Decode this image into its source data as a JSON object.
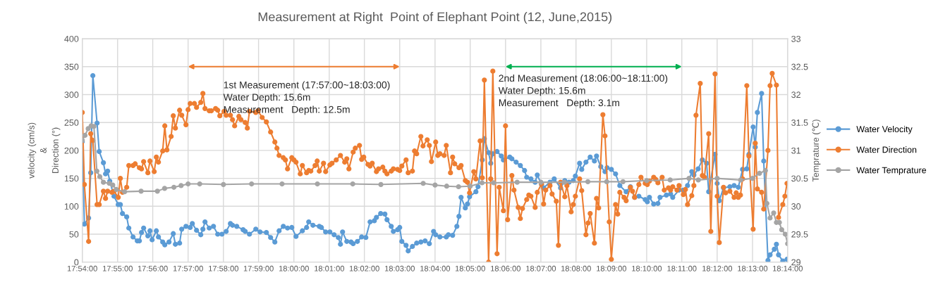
{
  "chart_data": {
    "type": "line",
    "title": "Measurement at Right  Point of Elephant Point (12, June,2015)",
    "ylabel": "velocity (cm/s)\n&\nDirection (°)",
    "y2label": "Temprature (℃)",
    "xlim": [
      17.9,
      18.2333
    ],
    "xticks": [
      {
        "value": 17.9,
        "label": "17:54:00"
      },
      {
        "value": 17.9167,
        "label": "17:55:00"
      },
      {
        "value": 17.9333,
        "label": "17:56:00"
      },
      {
        "value": 17.95,
        "label": "17:57:00"
      },
      {
        "value": 17.9667,
        "label": "17:58:00"
      },
      {
        "value": 17.9833,
        "label": "17:59:00"
      },
      {
        "value": 18.0,
        "label": "18:00:00"
      },
      {
        "value": 18.0167,
        "label": "18:01:00"
      },
      {
        "value": 18.0333,
        "label": "18:02:00"
      },
      {
        "value": 18.05,
        "label": "18:03:00"
      },
      {
        "value": 18.0667,
        "label": "18:04:00"
      },
      {
        "value": 18.0833,
        "label": "18:05:00"
      },
      {
        "value": 18.1,
        "label": "18:06:00"
      },
      {
        "value": 18.1167,
        "label": "18:07:00"
      },
      {
        "value": 18.1333,
        "label": "18:08:00"
      },
      {
        "value": 18.15,
        "label": "18:09:00"
      },
      {
        "value": 18.1667,
        "label": "18:10:00"
      },
      {
        "value": 18.1833,
        "label": "18:11:00"
      },
      {
        "value": 18.2,
        "label": "18:12:00"
      },
      {
        "value": 18.2167,
        "label": "18:13:00"
      },
      {
        "value": 18.2333,
        "label": "18:14:00"
      }
    ],
    "ylim": [
      0,
      400
    ],
    "yticks": [
      0,
      50,
      100,
      150,
      200,
      250,
      300,
      350,
      400
    ],
    "y2lim": [
      29,
      33
    ],
    "y2ticks": [
      29,
      29.5,
      30,
      30.5,
      31,
      31.5,
      32,
      32.5,
      33
    ],
    "grid": true,
    "legend": "right",
    "marker": "circle",
    "line_style": "solid",
    "annotations": [
      "1st Measurement (17:57:00~18:03:00)\nWater Depth: 15.6m\nMeasurement   Depth: 12.5m",
      "2nd Measurement (18:06:00~18:11:00)\nWater Depth: 15.6m\nMeasurement   Depth: 3.1m"
    ],
    "series": [
      {
        "name": "Water Velocity",
        "color": "#5b9bd5",
        "x": [
          17.9,
          17.901,
          17.903,
          17.904,
          17.905,
          17.907,
          17.908,
          17.91,
          17.911,
          17.912,
          17.913,
          17.915,
          17.917,
          17.918,
          17.919,
          17.921,
          17.922,
          17.924,
          17.926,
          17.927,
          17.928,
          17.929,
          17.931,
          17.932,
          17.933,
          17.935,
          17.936,
          17.938,
          17.939,
          17.941,
          17.943,
          17.944,
          17.946,
          17.947,
          17.949,
          17.951,
          17.952,
          17.954,
          17.956,
          17.957,
          17.958,
          17.96,
          17.962,
          17.964,
          17.966,
          17.968,
          17.97,
          17.971,
          17.973,
          17.976,
          17.977,
          17.979,
          17.982,
          17.984,
          17.987,
          17.989,
          17.991,
          17.993,
          17.995,
          17.997,
          17.999,
          18.001,
          18.004,
          18.006,
          18.007,
          18.009,
          18.012,
          18.013,
          18.015,
          18.017,
          18.019,
          18.021,
          18.022,
          18.023,
          18.025,
          18.027,
          18.028,
          18.03,
          18.032,
          18.034,
          18.036,
          18.038,
          18.039,
          18.041,
          18.043,
          18.044,
          18.046,
          18.047,
          18.049,
          18.05,
          18.051,
          18.053,
          18.054,
          18.056,
          18.058,
          18.06,
          18.062,
          18.064,
          18.066,
          18.067,
          18.069,
          18.072,
          18.073,
          18.075,
          18.077,
          18.078,
          18.079,
          18.081,
          18.082,
          18.083,
          18.086,
          18.087,
          18.089,
          18.09,
          18.092,
          18.093,
          18.094,
          18.096,
          18.098,
          18.099,
          18.102,
          18.103,
          18.105,
          18.107,
          18.109,
          18.11,
          18.112,
          18.114,
          18.115,
          18.117,
          18.118,
          18.121,
          18.123,
          18.126,
          18.128,
          18.13,
          18.132,
          18.133,
          18.135,
          18.136,
          18.138,
          18.14,
          18.142,
          18.143,
          18.145,
          18.147,
          18.148,
          18.15,
          18.152,
          18.154,
          18.157,
          18.159,
          18.161,
          18.163,
          18.166,
          18.167,
          18.168,
          18.17,
          18.172,
          18.173,
          18.176,
          18.178,
          18.179,
          18.182,
          18.184,
          18.186,
          18.188,
          18.189,
          18.191,
          18.193,
          18.195,
          18.196,
          18.199,
          18.2,
          18.201,
          18.203,
          18.206,
          18.208,
          18.21,
          18.212,
          18.214,
          18.215,
          18.217,
          18.218,
          18.219,
          18.221,
          18.222,
          18.224,
          18.225,
          18.227,
          18.228,
          18.229,
          18.231,
          18.233
        ],
        "values": [
          216,
          68,
          79,
          160,
          334,
          249,
          198,
          178,
          158,
          163,
          145,
          118,
          103,
          103,
          87,
          81,
          61,
          45,
          38,
          38,
          53,
          61,
          47,
          56,
          40,
          56,
          45,
          36,
          31,
          36,
          51,
          32,
          34,
          59,
          64,
          62,
          69,
          57,
          49,
          59,
          72,
          61,
          64,
          50,
          50,
          55,
          69,
          66,
          64,
          58,
          55,
          50,
          59,
          54,
          53,
          44,
          36,
          56,
          64,
          61,
          62,
          46,
          56,
          62,
          72,
          66,
          64,
          62,
          54,
          54,
          49,
          44,
          32,
          54,
          37,
          36,
          33,
          37,
          45,
          44,
          72,
          74,
          80,
          87,
          86,
          76,
          64,
          55,
          58,
          62,
          37,
          30,
          20,
          28,
          34,
          36,
          38,
          33,
          55,
          49,
          45,
          45,
          49,
          48,
          64,
          82,
          116,
          97,
          104,
          117,
          126,
          135,
          183,
          221,
          196,
          177,
          194,
          198,
          190,
          183,
          188,
          185,
          179,
          173,
          164,
          152,
          149,
          143,
          156,
          139,
          133,
          143,
          149,
          133,
          146,
          143,
          146,
          154,
          177,
          166,
          179,
          188,
          181,
          190,
          171,
          162,
          169,
          166,
          158,
          137,
          126,
          135,
          116,
          118,
          112,
          108,
          116,
          104,
          105,
          116,
          120,
          122,
          116,
          129,
          129,
          137,
          162,
          156,
          167,
          183,
          177,
          126,
          193,
          141,
          110,
          133,
          135,
          137,
          134,
          166,
          167,
          193,
          242,
          206,
          268,
          302,
          181,
          3,
          13,
          23,
          32,
          13,
          2,
          5
        ]
      },
      {
        "name": "Water Direction",
        "color": "#ed7d31",
        "x": [
          17.9,
          17.901,
          17.903,
          17.904,
          17.905,
          17.907,
          17.908,
          17.91,
          17.911,
          17.912,
          17.914,
          17.915,
          17.917,
          17.918,
          17.919,
          17.921,
          17.922,
          17.924,
          17.925,
          17.927,
          17.928,
          17.929,
          17.931,
          17.932,
          17.934,
          17.935,
          17.936,
          17.938,
          17.939,
          17.94,
          17.942,
          17.943,
          17.944,
          17.946,
          17.947,
          17.949,
          17.95,
          17.951,
          17.953,
          17.954,
          17.956,
          17.957,
          17.958,
          17.96,
          17.961,
          17.963,
          17.964,
          17.965,
          17.967,
          17.968,
          17.97,
          17.971,
          17.972,
          17.974,
          17.975,
          17.977,
          17.978,
          17.979,
          17.982,
          17.983,
          17.985,
          17.987,
          17.989,
          17.991,
          17.992,
          17.993,
          17.995,
          17.996,
          17.997,
          17.999,
          18.0,
          18.001,
          18.003,
          18.004,
          18.006,
          18.007,
          18.008,
          18.01,
          18.011,
          18.012,
          18.014,
          18.015,
          18.017,
          18.018,
          18.02,
          18.022,
          18.024,
          18.025,
          18.026,
          18.028,
          18.029,
          18.031,
          18.032,
          18.033,
          18.035,
          18.036,
          18.037,
          18.039,
          18.04,
          18.042,
          18.043,
          18.044,
          18.046,
          18.047,
          18.049,
          18.05,
          18.051,
          18.053,
          18.054,
          18.056,
          18.057,
          18.058,
          18.06,
          18.061,
          18.063,
          18.064,
          18.065,
          18.067,
          18.068,
          18.069,
          18.071,
          18.072,
          18.074,
          18.075,
          18.076,
          18.078,
          18.079,
          18.081,
          18.082,
          18.083,
          18.085,
          18.086,
          18.088,
          18.089,
          18.09,
          18.092,
          18.093,
          18.094,
          18.096,
          18.097,
          18.099,
          18.1,
          18.101,
          18.103,
          18.104,
          18.106,
          18.107,
          18.108,
          18.11,
          18.111,
          18.112,
          18.114,
          18.115,
          18.117,
          18.118,
          18.119,
          18.121,
          18.122,
          18.124,
          18.125,
          18.126,
          18.128,
          18.129,
          18.131,
          18.132,
          18.133,
          18.135,
          18.136,
          18.138,
          18.139,
          18.14,
          18.142,
          18.143,
          18.144,
          18.146,
          18.147,
          18.149,
          18.15,
          18.152,
          18.153,
          18.154,
          18.156,
          18.157,
          18.159,
          18.16,
          18.161,
          18.163,
          18.164,
          18.166,
          18.167,
          18.168,
          18.17,
          18.171,
          18.172,
          18.174,
          18.175,
          18.177,
          18.178,
          18.179,
          18.181,
          18.182,
          18.184,
          18.185,
          18.186,
          18.188,
          18.189,
          18.19,
          18.192,
          18.193,
          18.194,
          18.196,
          18.197,
          18.199,
          18.2,
          18.201,
          18.203,
          18.204,
          18.206,
          18.208,
          18.209,
          18.21,
          18.211,
          18.212,
          18.214,
          18.215,
          18.217,
          18.218,
          18.219,
          18.221,
          18.222,
          18.224,
          18.225,
          18.226,
          18.228,
          18.229,
          18.231,
          18.232,
          18.233
        ],
        "values": [
          268,
          139,
          37,
          230,
          218,
          103,
          103,
          127,
          114,
          127,
          125,
          127,
          116,
          150,
          125,
          134,
          173,
          173,
          176,
          169,
          167,
          180,
          160,
          181,
          162,
          188,
          179,
          199,
          244,
          201,
          225,
          262,
          240,
          272,
          263,
          246,
          273,
          284,
          284,
          277,
          286,
          302,
          275,
          271,
          271,
          275,
          272,
          262,
          270,
          263,
          263,
          255,
          244,
          261,
          255,
          250,
          240,
          270,
          268,
          271,
          259,
          251,
          233,
          215,
          204,
          191,
          187,
          183,
          167,
          187,
          183,
          179,
          158,
          173,
          160,
          164,
          163,
          173,
          181,
          163,
          177,
          162,
          174,
          177,
          183,
          191,
          179,
          185,
          167,
          197,
          204,
          209,
          184,
          188,
          175,
          172,
          177,
          162,
          167,
          170,
          163,
          158,
          163,
          167,
          166,
          164,
          172,
          183,
          160,
          163,
          199,
          194,
          225,
          208,
          219,
          209,
          180,
          215,
          191,
          194,
          191,
          209,
          160,
          188,
          176,
          169,
          173,
          146,
          143,
          124,
          162,
          149,
          217,
          151,
          326,
          0,
          149,
          342,
          15,
          134,
          92,
          244,
          76,
          155,
          129,
          98,
          78,
          96,
          112,
          120,
          118,
          98,
          125,
          140,
          104,
          129,
          137,
          122,
          109,
          30,
          143,
          117,
          137,
          90,
          103,
          118,
          149,
          128,
          49,
          70,
          87,
          34,
          114,
          97,
          264,
          226,
          72,
          5,
          103,
          86,
          125,
          116,
          110,
          134,
          127,
          116,
          139,
          152,
          141,
          139,
          145,
          152,
          148,
          142,
          152,
          129,
          133,
          129,
          135,
          129,
          137,
          121,
          130,
          103,
          119,
          137,
          263,
          320,
          155,
          152,
          230,
          55,
          337,
          118,
          35,
          134,
          124,
          127,
          116,
          124,
          116,
          120,
          149,
          316,
          190,
          59,
          213,
          131,
          125,
          95,
          200,
          316,
          338,
          317,
          80,
          103,
          118,
          141
        ]
      },
      {
        "name": "Water Temprature",
        "color": "#a5a5a5",
        "axis": "y2",
        "x": [
          17.9,
          17.9013,
          17.9028,
          17.9042,
          17.9055,
          17.9069,
          17.9083,
          17.91,
          17.9128,
          17.9144,
          17.9161,
          17.92,
          17.9278,
          17.9355,
          17.9389,
          17.9433,
          17.9467,
          17.95,
          17.9555,
          17.9667,
          17.98,
          17.9944,
          18.0111,
          18.0278,
          18.0411,
          18.0611,
          18.0667,
          18.0722,
          18.0778,
          18.0833,
          18.0889,
          18.0944,
          18.1055,
          18.1167,
          18.1278,
          18.1389,
          18.1478,
          18.1555,
          18.1667,
          18.1778,
          18.1867,
          18.1911,
          18.2,
          18.2111,
          18.2167,
          18.22,
          18.2228,
          18.2235,
          18.225,
          18.2267,
          18.228,
          18.2294,
          18.2305,
          18.2322,
          18.2333
        ],
        "values": [
          31.18,
          31.27,
          31.39,
          31.44,
          31.43,
          30.63,
          30.53,
          30.43,
          30.41,
          30.38,
          30.3,
          30.26,
          30.27,
          30.27,
          30.32,
          30.34,
          30.37,
          30.4,
          30.4,
          30.39,
          30.4,
          30.4,
          30.4,
          30.4,
          30.39,
          30.41,
          30.38,
          30.36,
          30.35,
          30.36,
          30.42,
          30.42,
          30.43,
          30.43,
          30.43,
          30.44,
          30.44,
          30.44,
          30.46,
          30.47,
          30.5,
          30.47,
          30.5,
          30.47,
          30.5,
          30.59,
          30.64,
          30.05,
          29.79,
          29.88,
          29.71,
          29.71,
          29.58,
          29.5,
          29.33
        ]
      }
    ]
  }
}
